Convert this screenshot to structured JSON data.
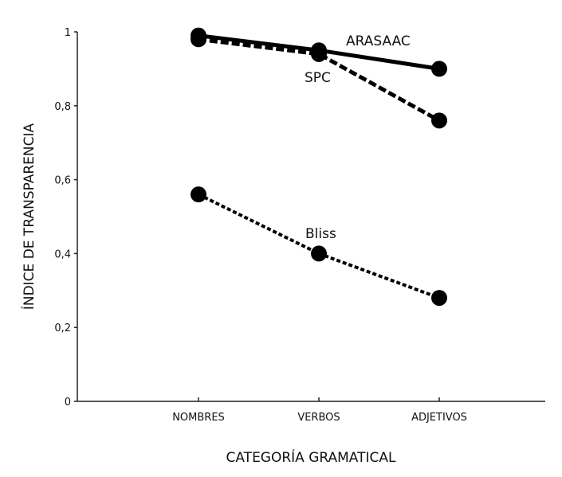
{
  "chart_data": {
    "type": "line",
    "title": "",
    "xlabel": "CATEGORÍA GRAMATICAL",
    "ylabel": "ÍNDICE DE TRANSPARENCIA",
    "categories": [
      "NOMBRES",
      "VERBOS",
      "ADJETIVOS"
    ],
    "ylim": [
      0,
      1
    ],
    "yticks": [
      "0",
      "0,2",
      "0,4",
      "0,6",
      "0,8",
      "1"
    ],
    "ytick_values": [
      0,
      0.2,
      0.4,
      0.6,
      0.8,
      1
    ],
    "grid": false,
    "legend": "inline labels",
    "series": [
      {
        "name": "ARASAAC",
        "values": [
          0.99,
          0.95,
          0.9
        ],
        "style": "solid",
        "color": "#000000"
      },
      {
        "name": "SPC",
        "values": [
          0.98,
          0.94,
          0.76
        ],
        "style": "dashed",
        "color": "#000000"
      },
      {
        "name": "Bliss",
        "values": [
          0.56,
          0.4,
          0.28
        ],
        "style": "dotted",
        "color": "#000000"
      }
    ]
  }
}
